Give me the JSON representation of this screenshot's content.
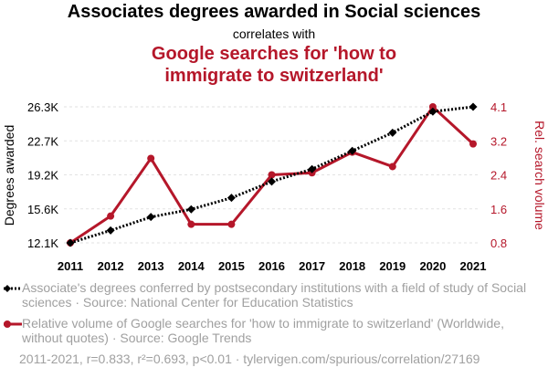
{
  "header": {
    "title": "Associates degrees awarded in Social sciences",
    "subtitle": "correlates with",
    "title2_line1": "Google searches for 'how to",
    "title2_line2": "immigrate to switzerland'"
  },
  "colors": {
    "series1": "#000000",
    "series2": "#b5172a",
    "muted": "#a0a0a0"
  },
  "chart_data": {
    "type": "line",
    "x": [
      2011,
      2012,
      2013,
      2014,
      2015,
      2016,
      2017,
      2018,
      2019,
      2020,
      2021
    ],
    "xticks": [
      "2011",
      "2012",
      "2013",
      "2014",
      "2015",
      "2016",
      "2017",
      "2018",
      "2019",
      "2020",
      "2021"
    ],
    "ylabel_left": "Degrees awarded",
    "ylabel_right": "Rel. search volume",
    "yticks_left": [
      "12.1K",
      "15.6K",
      "19.2K",
      "22.7K",
      "26.3K"
    ],
    "yticks_right": [
      "0.8",
      "1.6",
      "2.4",
      "3.2",
      "4.1"
    ],
    "ylim_left": [
      12100,
      26300
    ],
    "ylim_right": [
      0.8,
      4.1
    ],
    "series": [
      {
        "name": "Associate's degrees conferred by postsecondary institutions with a field of study of Social sciences",
        "axis": "left",
        "style": "dotted",
        "marker": "diamond",
        "values": [
          12100,
          13400,
          14800,
          15600,
          16800,
          18500,
          19800,
          21700,
          23600,
          25800,
          26300
        ]
      },
      {
        "name": "Relative volume of Google searches for 'how to immigrate to switzerland' (Worldwide, without quotes)",
        "axis": "right",
        "style": "solid",
        "marker": "circle",
        "values": [
          0.8,
          1.45,
          2.85,
          1.25,
          1.25,
          2.45,
          2.5,
          3.0,
          2.65,
          4.1,
          3.2
        ]
      }
    ]
  },
  "legend": {
    "item1": "Associate's degrees conferred by postsecondary institutions with a field of study of Social sciences · Source: National Center for Education Statistics",
    "item2": "Relative volume of Google searches for 'how to immigrate to switzerland' (Worldwide, without quotes) · Source: Google Trends"
  },
  "footer": "2011-2021, r=0.833, r²=0.693, p<0.01 · tylervigen.com/spurious/correlation/27169"
}
